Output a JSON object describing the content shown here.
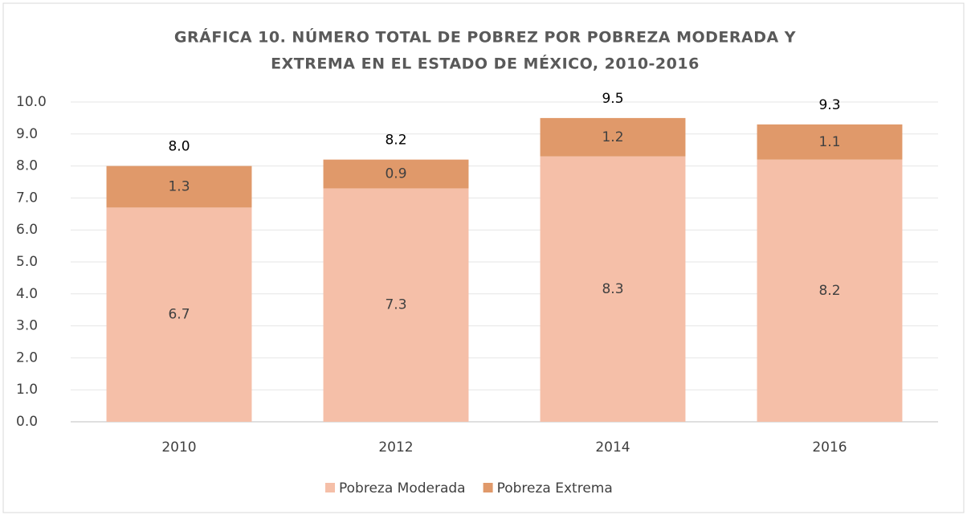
{
  "chart_data": {
    "type": "stacked_bar",
    "title": [
      "GRÁFICA 10. NÚMERO TOTAL DE POBREZ POR POBREZA MODERADA Y",
      "EXTREMA EN EL ESTADO DE MÉXICO, 2010-2016"
    ],
    "categories": [
      "2010",
      "2012",
      "2014",
      "2016"
    ],
    "series": [
      {
        "name": "Pobreza Moderada",
        "color": "#f5bfa8",
        "values": [
          6.7,
          7.3,
          8.3,
          8.2
        ]
      },
      {
        "name": "Pobreza Extrema",
        "color": "#e0996a",
        "values": [
          1.3,
          0.9,
          1.2,
          1.1
        ]
      }
    ],
    "totals": {
      "values": [
        8,
        8.2,
        9.5,
        9.3
      ],
      "value_labels": [
        "8.0",
        "8.2",
        "9.5",
        "9.3"
      ]
    },
    "ylim": [
      0,
      10
    ],
    "yticks": [
      {
        "value": 0,
        "label": "0.0"
      },
      {
        "value": 1,
        "label": "1.0"
      },
      {
        "value": 2,
        "label": "2.0"
      },
      {
        "value": 3,
        "label": "3.0"
      },
      {
        "value": 4,
        "label": "4.0"
      },
      {
        "value": 5,
        "label": "5.0"
      },
      {
        "value": 6,
        "label": "6.0"
      },
      {
        "value": 7,
        "label": "7.0"
      },
      {
        "value": 8,
        "label": "8.0"
      },
      {
        "value": 9,
        "label": "9.0"
      },
      {
        "value": 10,
        "label": "10.0"
      }
    ],
    "grid": true,
    "legend": "bottom"
  }
}
